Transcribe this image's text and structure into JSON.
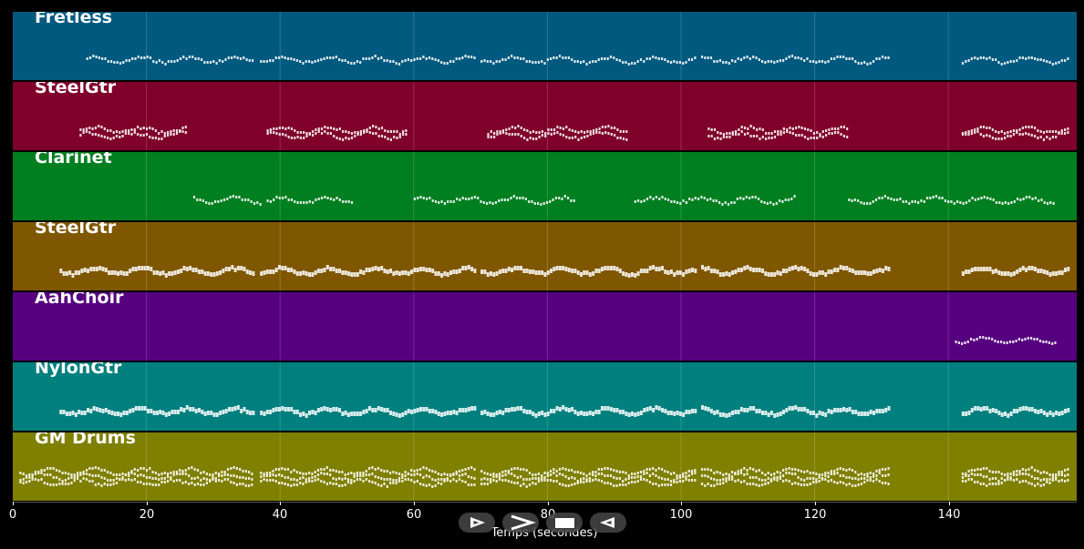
{
  "tracks": [
    {
      "name": "Fretless",
      "color": "#00597f"
    },
    {
      "name": "SteelGtr",
      "color": "#7f002b"
    },
    {
      "name": "Clarinet",
      "color": "#007f20"
    },
    {
      "name": "SteelGtr",
      "color": "#7f5700"
    },
    {
      "name": "AahChoir",
      "color": "#56007f"
    },
    {
      "name": "NylonGtr",
      "color": "#007f7f"
    },
    {
      "name": "GM Drums",
      "color": "#7f7f00"
    }
  ],
  "axis": {
    "xlabel": "Temps (secondes)",
    "xlim": [
      0,
      159
    ],
    "ticks": [
      "0",
      "20",
      "40",
      "60",
      "80",
      "100",
      "120",
      "140"
    ]
  },
  "controls": {
    "play": {
      "icon": "play-outline-icon"
    },
    "forward": {
      "icon": "chevron-right-icon"
    },
    "stop": {
      "icon": "stop-icon"
    },
    "rewind": {
      "icon": "rewind-icon"
    }
  }
}
